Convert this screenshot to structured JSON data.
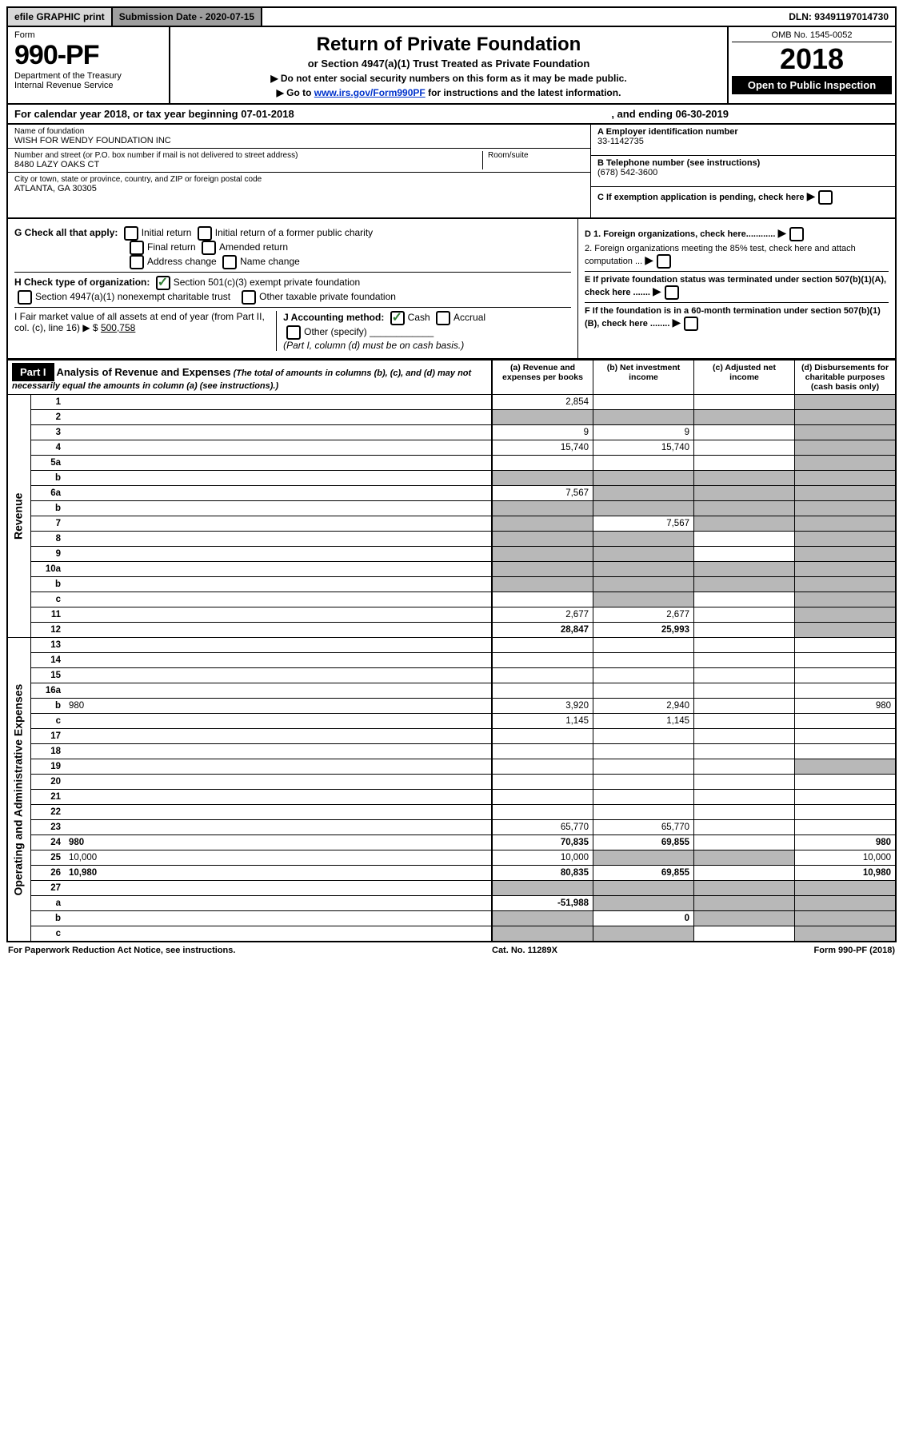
{
  "top": {
    "efile": "efile GRAPHIC print",
    "subdate_label": "Submission Date - 2020-07-15",
    "dln": "DLN: 93491197014730"
  },
  "header": {
    "form_label": "Form",
    "form_no": "990-PF",
    "dept": "Department of the Treasury",
    "irs": "Internal Revenue Service",
    "title": "Return of Private Foundation",
    "subtitle": "or Section 4947(a)(1) Trust Treated as Private Foundation",
    "inst1": "▶ Do not enter social security numbers on this form as it may be made public.",
    "inst2_pre": "▶ Go to ",
    "inst2_link": "www.irs.gov/Form990PF",
    "inst2_post": " for instructions and the latest information.",
    "omb": "OMB No. 1545-0052",
    "year": "2018",
    "open": "Open to Public Inspection"
  },
  "calyear": {
    "pre": "For calendar year 2018, or tax year beginning 07-01-2018",
    "mid": ", and ending 06-30-2019"
  },
  "info": {
    "name_lbl": "Name of foundation",
    "name": "WISH FOR WENDY FOUNDATION INC",
    "addr_lbl": "Number and street (or P.O. box number if mail is not delivered to street address)",
    "addr": "8480 LAZY OAKS CT",
    "room_lbl": "Room/suite",
    "city_lbl": "City or town, state or province, country, and ZIP or foreign postal code",
    "city": "ATLANTA, GA  30305",
    "ein_lbl": "A Employer identification number",
    "ein": "33-1142735",
    "tel_lbl": "B Telephone number (see instructions)",
    "tel": "(678) 542-3600",
    "c_lbl": "C If exemption application is pending, check here",
    "d1_lbl": "D 1. Foreign organizations, check here............",
    "d2_lbl": "2. Foreign organizations meeting the 85% test, check here and attach computation ...",
    "e_lbl": "E If private foundation status was terminated under section 507(b)(1)(A), check here .......",
    "f_lbl": "F If the foundation is in a 60-month termination under section 507(b)(1)(B), check here ........"
  },
  "checks": {
    "g_lbl": "G Check all that apply:",
    "g1": "Initial return",
    "g2": "Initial return of a former public charity",
    "g3": "Final return",
    "g4": "Amended return",
    "g5": "Address change",
    "g6": "Name change",
    "h_lbl": "H Check type of organization:",
    "h1": "Section 501(c)(3) exempt private foundation",
    "h2": "Section 4947(a)(1) nonexempt charitable trust",
    "h3": "Other taxable private foundation",
    "i_lbl": "I Fair market value of all assets at end of year (from Part II, col. (c), line 16) ▶ $",
    "i_val": "500,758",
    "j_lbl": "J Accounting method:",
    "j1": "Cash",
    "j2": "Accrual",
    "j3": "Other (specify)",
    "j_note": "(Part I, column (d) must be on cash basis.)"
  },
  "part1": {
    "label": "Part I",
    "title": "Analysis of Revenue and Expenses",
    "desc": "(The total of amounts in columns (b), (c), and (d) may not necessarily equal the amounts in column (a) (see instructions).)",
    "col_a": "(a) Revenue and expenses per books",
    "col_b": "(b) Net investment income",
    "col_c": "(c) Adjusted net income",
    "col_d": "(d) Disbursements for charitable purposes (cash basis only)",
    "rev_label": "Revenue",
    "exp_label": "Operating and Administrative Expenses",
    "rows": [
      {
        "n": "1",
        "d": "",
        "a": "2,854",
        "b": "",
        "c": "",
        "sh": [
          "d"
        ]
      },
      {
        "n": "2",
        "d": "",
        "a": "",
        "b": "",
        "c": "",
        "sh": [
          "a",
          "b",
          "c",
          "d"
        ],
        "bold": false
      },
      {
        "n": "3",
        "d": "",
        "a": "9",
        "b": "9",
        "c": "",
        "sh": [
          "d"
        ]
      },
      {
        "n": "4",
        "d": "",
        "a": "15,740",
        "b": "15,740",
        "c": "",
        "sh": [
          "d"
        ]
      },
      {
        "n": "5a",
        "d": "",
        "a": "",
        "b": "",
        "c": "",
        "sh": [
          "d"
        ]
      },
      {
        "n": "b",
        "d": "",
        "a": "",
        "b": "",
        "c": "",
        "sh": [
          "a",
          "b",
          "c",
          "d"
        ]
      },
      {
        "n": "6a",
        "d": "",
        "a": "7,567",
        "b": "",
        "c": "",
        "sh": [
          "b",
          "c",
          "d"
        ]
      },
      {
        "n": "b",
        "d": "",
        "a": "",
        "b": "",
        "c": "",
        "sh": [
          "a",
          "b",
          "c",
          "d"
        ]
      },
      {
        "n": "7",
        "d": "",
        "a": "",
        "b": "7,567",
        "c": "",
        "sh": [
          "a",
          "c",
          "d"
        ]
      },
      {
        "n": "8",
        "d": "",
        "a": "",
        "b": "",
        "c": "",
        "sh": [
          "a",
          "b",
          "d"
        ]
      },
      {
        "n": "9",
        "d": "",
        "a": "",
        "b": "",
        "c": "",
        "sh": [
          "a",
          "b",
          "d"
        ]
      },
      {
        "n": "10a",
        "d": "",
        "a": "",
        "b": "",
        "c": "",
        "sh": [
          "a",
          "b",
          "c",
          "d"
        ]
      },
      {
        "n": "b",
        "d": "",
        "a": "",
        "b": "",
        "c": "",
        "sh": [
          "a",
          "b",
          "c",
          "d"
        ]
      },
      {
        "n": "c",
        "d": "",
        "a": "",
        "b": "",
        "c": "",
        "sh": [
          "b",
          "d"
        ]
      },
      {
        "n": "11",
        "d": "",
        "a": "2,677",
        "b": "2,677",
        "c": "",
        "sh": [
          "d"
        ]
      },
      {
        "n": "12",
        "d": "",
        "a": "28,847",
        "b": "25,993",
        "c": "",
        "sh": [
          "d"
        ],
        "bold": true
      },
      {
        "n": "13",
        "d": "",
        "a": "",
        "b": "",
        "c": ""
      },
      {
        "n": "14",
        "d": "",
        "a": "",
        "b": "",
        "c": ""
      },
      {
        "n": "15",
        "d": "",
        "a": "",
        "b": "",
        "c": ""
      },
      {
        "n": "16a",
        "d": "",
        "a": "",
        "b": "",
        "c": ""
      },
      {
        "n": "b",
        "d": "980",
        "a": "3,920",
        "b": "2,940",
        "c": ""
      },
      {
        "n": "c",
        "d": "",
        "a": "1,145",
        "b": "1,145",
        "c": ""
      },
      {
        "n": "17",
        "d": "",
        "a": "",
        "b": "",
        "c": ""
      },
      {
        "n": "18",
        "d": "",
        "a": "",
        "b": "",
        "c": ""
      },
      {
        "n": "19",
        "d": "",
        "a": "",
        "b": "",
        "c": "",
        "sh": [
          "d"
        ]
      },
      {
        "n": "20",
        "d": "",
        "a": "",
        "b": "",
        "c": ""
      },
      {
        "n": "21",
        "d": "",
        "a": "",
        "b": "",
        "c": ""
      },
      {
        "n": "22",
        "d": "",
        "a": "",
        "b": "",
        "c": ""
      },
      {
        "n": "23",
        "d": "",
        "a": "65,770",
        "b": "65,770",
        "c": ""
      },
      {
        "n": "24",
        "d": "980",
        "a": "70,835",
        "b": "69,855",
        "c": "",
        "bold": true
      },
      {
        "n": "25",
        "d": "10,000",
        "a": "10,000",
        "b": "",
        "c": "",
        "sh": [
          "b",
          "c"
        ]
      },
      {
        "n": "26",
        "d": "10,980",
        "a": "80,835",
        "b": "69,855",
        "c": "",
        "bold": true
      },
      {
        "n": "27",
        "d": "",
        "a": "",
        "b": "",
        "c": "",
        "sh": [
          "a",
          "b",
          "c",
          "d"
        ]
      },
      {
        "n": "a",
        "d": "",
        "a": "-51,988",
        "b": "",
        "c": "",
        "sh": [
          "b",
          "c",
          "d"
        ],
        "bold": true
      },
      {
        "n": "b",
        "d": "",
        "a": "",
        "b": "0",
        "c": "",
        "sh": [
          "a",
          "c",
          "d"
        ],
        "bold": true
      },
      {
        "n": "c",
        "d": "",
        "a": "",
        "b": "",
        "c": "",
        "sh": [
          "a",
          "b",
          "d"
        ],
        "bold": true
      }
    ]
  },
  "footer": {
    "left": "For Paperwork Reduction Act Notice, see instructions.",
    "mid": "Cat. No. 11289X",
    "right": "Form 990-PF (2018)"
  }
}
